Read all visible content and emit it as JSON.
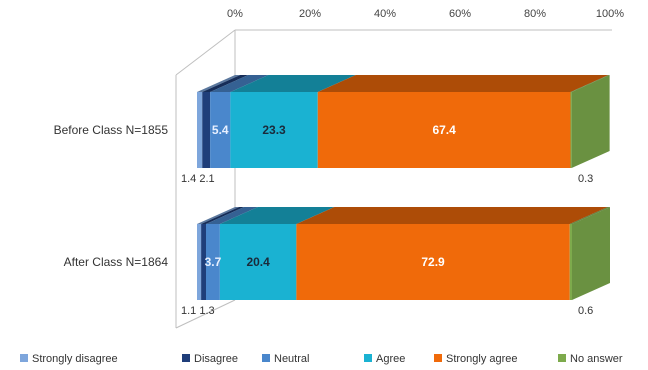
{
  "chart_data": {
    "type": "bar",
    "orientation": "horizontal",
    "stacked": true,
    "style": "3d",
    "xlim": [
      0,
      100
    ],
    "x_ticks": [
      "0%",
      "20%",
      "40%",
      "60%",
      "80%",
      "100%"
    ],
    "x_axis_position": "top",
    "categories": [
      "Before Class N=1855",
      "After Class N=1864"
    ],
    "series": [
      {
        "name": "Strongly disagree",
        "color": "#7ea6dc",
        "values": [
          1.4,
          1.1
        ]
      },
      {
        "name": "Disagree",
        "color": "#1f3e7a",
        "values": [
          2.1,
          1.3
        ]
      },
      {
        "name": "Neutral",
        "color": "#4a87cc",
        "values": [
          5.4,
          3.7
        ]
      },
      {
        "name": "Agree",
        "color": "#1ab2d2",
        "values": [
          23.3,
          20.4
        ]
      },
      {
        "name": "Strongly agree",
        "color": "#f06a0a",
        "values": [
          67.4,
          72.9
        ]
      },
      {
        "name": "No answer",
        "color": "#7daa4c",
        "values": [
          0.3,
          0.6
        ]
      }
    ],
    "segment_labels": [
      {
        "category": 0,
        "series": 2,
        "text": "5.4"
      },
      {
        "category": 0,
        "series": 3,
        "text": "23.3"
      },
      {
        "category": 0,
        "series": 4,
        "text": "67.4"
      },
      {
        "category": 1,
        "series": 2,
        "text": "3.7"
      },
      {
        "category": 1,
        "series": 3,
        "text": "20.4"
      },
      {
        "category": 1,
        "series": 4,
        "text": "72.9"
      }
    ],
    "outside_labels": [
      {
        "category": 0,
        "position": "left",
        "text": "1.4 2.1"
      },
      {
        "category": 0,
        "position": "right",
        "text": "0.3"
      },
      {
        "category": 1,
        "position": "left",
        "text": "1.1 1.3"
      },
      {
        "category": 1,
        "position": "right",
        "text": "0.6"
      }
    ],
    "legend_position": "bottom",
    "grid": false
  }
}
